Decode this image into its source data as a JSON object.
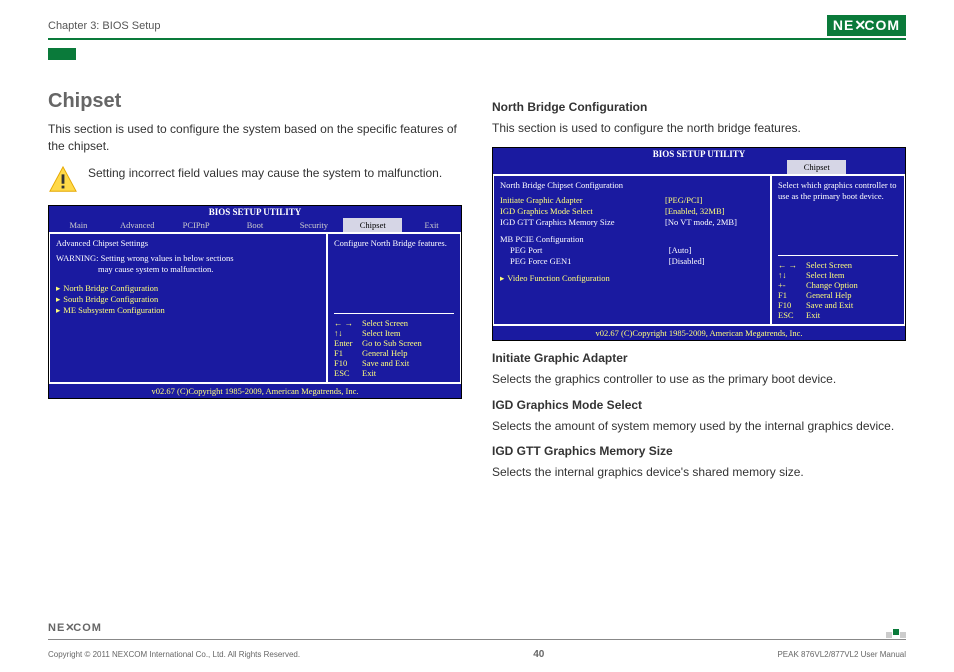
{
  "header": {
    "chapter": "Chapter 3: BIOS Setup",
    "logo_text": "NE COM"
  },
  "left": {
    "title": "Chipset",
    "intro": "This section is used to configure the system based on the specific features of the chipset.",
    "warning": "Setting incorrect field values may cause the system to malfunction."
  },
  "right": {
    "nb_title": "North Bridge Configuration",
    "nb_intro": "This section is used to configure the north bridge features.",
    "iga_title": "Initiate Graphic Adapter",
    "iga_text": "Selects the graphics controller to use as the primary boot device.",
    "igd_title": "IGD Graphics Mode Select",
    "igd_text": "Selects the amount of system memory used by the internal graphics device.",
    "gtt_title": "IGD GTT Graphics Memory Size",
    "gtt_text": "Selects the internal graphics device's shared memory size."
  },
  "bios1": {
    "title": "BIOS SETUP UTILITY",
    "tabs": [
      "Main",
      "Advanced",
      "PCIPnP",
      "Boot",
      "Security",
      "Chipset",
      "Exit"
    ],
    "active_tab": 5,
    "heading": "Advanced Chipset Settings",
    "warning_l1": "WARNING: Setting wrong values in below sections",
    "warning_l2": "may cause system to malfunction.",
    "items": [
      "North Bridge Configuration",
      "South Bridge Configuration",
      "ME Subsystem Configuration"
    ],
    "side_text": "Configure North Bridge features.",
    "help": [
      {
        "k": "← →",
        "v": "Select Screen"
      },
      {
        "k": "↑↓",
        "v": "Select Item"
      },
      {
        "k": "Enter",
        "v": "Go to Sub Screen"
      },
      {
        "k": "F1",
        "v": "General Help"
      },
      {
        "k": "F10",
        "v": "Save and Exit"
      },
      {
        "k": "ESC",
        "v": "Exit"
      }
    ],
    "footer": "v02.67 (C)Copyright 1985-2009, American Megatrends, Inc."
  },
  "bios2": {
    "title": "BIOS SETUP UTILITY",
    "single_tab": "Chipset",
    "heading": "North Bridge Chipset Configuration",
    "rows": [
      {
        "label": "Initiate Graphic Adapter",
        "val": "[PEG/PCI]",
        "yellow": true
      },
      {
        "label": "IGD Graphics Mode Select",
        "val": "[Enabled, 32MB]",
        "yellow": true
      },
      {
        "label": "IGD GTT Graphics Memory Size",
        "val": "[No VT mode, 2MB]",
        "yellow": false
      }
    ],
    "section2_title": "MB PCIE Configuration",
    "section2": [
      {
        "label": "PEG Port",
        "val": "[Auto]"
      },
      {
        "label": "PEG Force GEN1",
        "val": "[Disabled]"
      }
    ],
    "extra_item": "Video Function Configuration",
    "side_text": "Select which graphics controller to use as the primary boot device.",
    "help": [
      {
        "k": "← →",
        "v": "Select Screen"
      },
      {
        "k": "↑↓",
        "v": "Select Item"
      },
      {
        "k": "+-",
        "v": "Change Option"
      },
      {
        "k": "F1",
        "v": "General Help"
      },
      {
        "k": "F10",
        "v": "Save and Exit"
      },
      {
        "k": "ESC",
        "v": "Exit"
      }
    ],
    "footer": "v02.67 (C)Copyright 1985-2009, American Megatrends, Inc."
  },
  "footer": {
    "copyright": "Copyright © 2011 NEXCOM International Co., Ltd. All Rights Reserved.",
    "page": "40",
    "manual": "PEAK 876VL2/877VL2 User Manual",
    "logo_text": "NE COM"
  },
  "colors": {
    "brand": "#0a7a3a",
    "bios_bg": "#1a1aa0",
    "bios_yellow": "#ffff7a"
  }
}
